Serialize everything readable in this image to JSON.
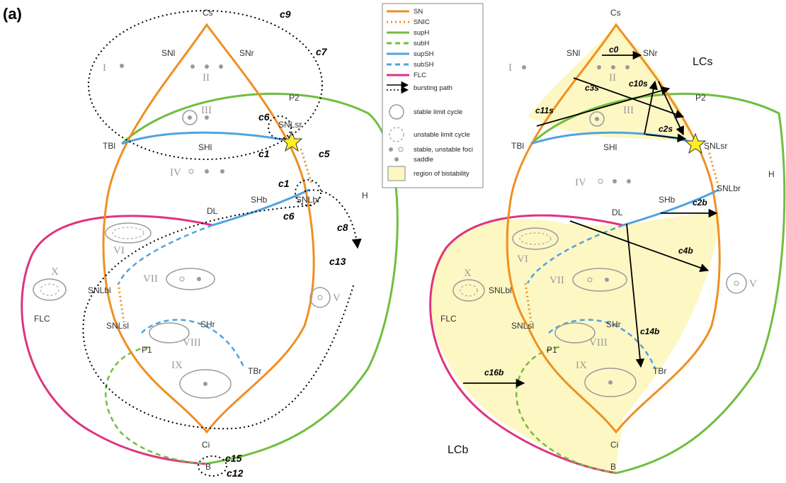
{
  "panel_label": "(a)",
  "colors": {
    "SN": "#ef8f22",
    "supH": "#6fbf3f",
    "supSH": "#4ea3e0",
    "FLC": "#e0337f",
    "bistable": "#fdf7c4",
    "gray": "#9a9a9a"
  },
  "legend": {
    "items": [
      {
        "label": "SN"
      },
      {
        "label": "SNIC"
      },
      {
        "label": "supH"
      },
      {
        "label": "subH"
      },
      {
        "label": "supSH"
      },
      {
        "label": "subSH"
      },
      {
        "label": "FLC"
      },
      {
        "label": "bursting path"
      },
      {
        "label": "stable limit cycle"
      },
      {
        "label": "unstable limit cycle"
      },
      {
        "label": "stable, unstable foci"
      },
      {
        "label": "saddle"
      },
      {
        "label": "region of bistability"
      }
    ]
  },
  "left": {
    "points": {
      "Cs": "Cs",
      "Ci": "Ci",
      "SNl": "SNl",
      "SNr": "SNr",
      "P2": "P2",
      "P1": "P1",
      "TBl": "TBl",
      "TBr": "TBr",
      "SHl": "SHl",
      "SHb": "SHb",
      "SHr": "SHr",
      "SNLsr": "SNLsr",
      "SNLbr": "SNLbr",
      "SNLbl": "SNLbl",
      "SNLsl": "SNLsl",
      "DL": "DL",
      "H": "H",
      "FLC": "FLC",
      "B": "B"
    },
    "regions": [
      "I",
      "II",
      "III",
      "IV",
      "V",
      "VI",
      "VII",
      "VIII",
      "IX",
      "X"
    ],
    "cycles": [
      "c9",
      "c7",
      "c6",
      "c1",
      "c5",
      "c1",
      "c6",
      "c8",
      "c13",
      "c15",
      "c12"
    ]
  },
  "right": {
    "points": {
      "Cs": "Cs",
      "Ci": "Ci",
      "SNl": "SNl",
      "SNr": "SNr",
      "P2": "P2",
      "P1": "P1",
      "TBl": "TBl",
      "TBr": "TBr",
      "SHl": "SHl",
      "SHb": "SHb",
      "SHr": "SHr",
      "SNLsr": "SNLsr",
      "SNLbr": "SNLbr",
      "SNLbl": "SNLbl",
      "SNLsl": "SNLsl",
      "DL": "DL",
      "H": "H",
      "FLC": "FLC",
      "B": "B"
    },
    "regions": [
      "I",
      "II",
      "III",
      "IV",
      "V",
      "VI",
      "VII",
      "VIII",
      "IX",
      "X"
    ],
    "region_labels": {
      "LCs": "LCs",
      "LCb": "LCb"
    },
    "paths": [
      "c0",
      "c3s",
      "c10s",
      "c11s",
      "c2s",
      "c2b",
      "c4b",
      "c14b",
      "c16b"
    ]
  }
}
